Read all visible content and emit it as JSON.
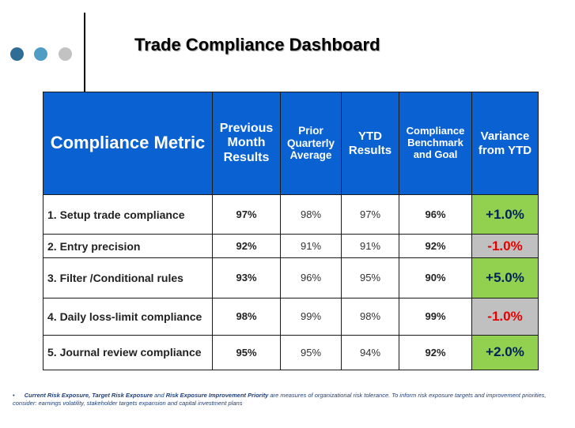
{
  "title": "Trade Compliance Dashboard",
  "decor": {
    "dot_colors": [
      "#2e6e94",
      "#4f9cc4",
      "#c2c2c2"
    ]
  },
  "table": {
    "headers": {
      "metric": "Compliance Metric",
      "previous_month": "Previous Month Results",
      "prior_quarterly": "Prior Quarterly Average",
      "ytd": "YTD Results",
      "benchmark": "Compliance Benchmark and Goal",
      "variance": "Variance from YTD"
    },
    "rows": [
      {
        "metric": "1. Setup trade compliance",
        "previous_month": "97%",
        "prior_quarterly": "98%",
        "ytd": "97%",
        "benchmark": "96%",
        "variance": "+1.0%",
        "variance_color": "#00205b",
        "variance_bg": "#92d050"
      },
      {
        "metric": "2. Entry precision",
        "previous_month": "92%",
        "prior_quarterly": "91%",
        "ytd": "91%",
        "benchmark": "92%",
        "variance": "-1.0%",
        "variance_color": "#e60000",
        "variance_bg": "#c0c0c0"
      },
      {
        "metric": "3. Filter /Conditional rules",
        "previous_month": "93%",
        "prior_quarterly": "96%",
        "ytd": "95%",
        "benchmark": "90%",
        "variance": "+5.0%",
        "variance_color": "#00205b",
        "variance_bg": "#92d050"
      },
      {
        "metric": "4. Daily loss-limit compliance",
        "previous_month": "98%",
        "prior_quarterly": "99%",
        "ytd": "98%",
        "benchmark": "99%",
        "variance": "-1.0%",
        "variance_color": "#e60000",
        "variance_bg": "#c0c0c0"
      },
      {
        "metric": "5. Journal review compliance",
        "previous_month": "95%",
        "prior_quarterly": "95%",
        "ytd": "94%",
        "benchmark": "92%",
        "variance": "+2.0%",
        "variance_color": "#00205b",
        "variance_bg": "#92d050"
      }
    ]
  },
  "footnote": {
    "bullet": "•",
    "term1": "Current Risk Exposure,",
    "term2": "Target Risk Exposure",
    "and": "and",
    "term3": "Risk Exposure Improvement Priority",
    "text": "are measures of organizational risk tolerance. To inform risk exposure targets and improvement priorities, consider: earnings volatility, stakeholder targets expansion and capital investment plans"
  }
}
